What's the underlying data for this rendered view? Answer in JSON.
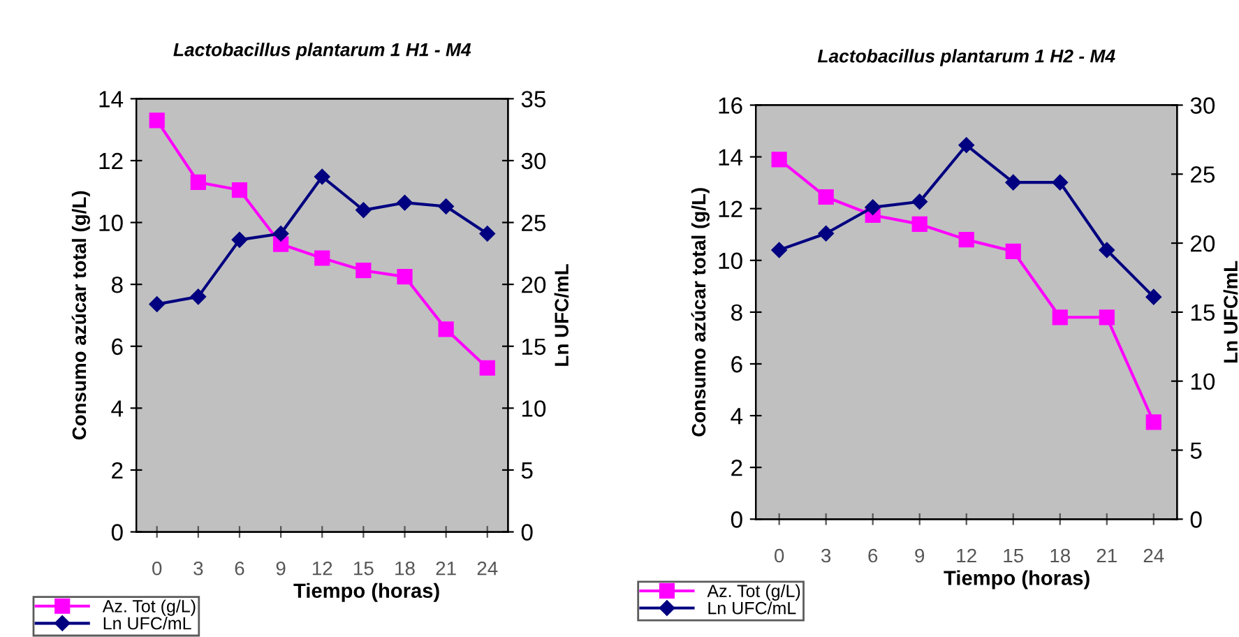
{
  "chart_data": [
    {
      "type": "line",
      "title": "Lactobacillus plantarum 1 H1 - M4",
      "xlabel": "Tiempo (horas)",
      "ylabel": "Consumo azúcar total (g/L)",
      "y2label": "Ln UFC/mL",
      "categories": [
        "0",
        "3",
        "6",
        "9",
        "12",
        "15",
        "18",
        "21",
        "24"
      ],
      "series": [
        {
          "name": "Az. Tot (g/L)",
          "color": "#ff00ff",
          "marker": "square",
          "values": [
            13.3,
            11.3,
            11.05,
            9.3,
            8.85,
            8.45,
            8.25,
            6.55,
            5.3
          ]
        },
        {
          "name": "Ln UFC/mL",
          "color": "#000080",
          "marker": "diamond",
          "axis": "y2",
          "values": [
            18.4,
            19.0,
            23.6,
            24.1,
            28.7,
            26.0,
            26.6,
            26.3,
            24.1
          ]
        }
      ],
      "ylim": [
        0,
        14
      ],
      "yticks": [
        0,
        2,
        4,
        6,
        8,
        10,
        12,
        14
      ],
      "y2lim": [
        0,
        35
      ],
      "y2ticks": [
        0,
        5,
        10,
        15,
        20,
        25,
        30,
        35
      ],
      "grid": false,
      "legend": "bottom left"
    },
    {
      "type": "line",
      "title": "Lactobacillus plantarum 1 H2 - M4",
      "xlabel": "Tiempo (horas)",
      "ylabel": "Consumo azúcar total (g/L)",
      "y2label": "Ln UFC/mL",
      "categories": [
        "0",
        "3",
        "6",
        "9",
        "12",
        "15",
        "18",
        "21",
        "24"
      ],
      "series": [
        {
          "name": "Az. Tot (g/L)",
          "color": "#ff00ff",
          "marker": "square",
          "values": [
            13.9,
            12.45,
            11.75,
            11.4,
            10.8,
            10.35,
            7.8,
            7.8,
            3.75
          ]
        },
        {
          "name": "Ln UFC/mL",
          "color": "#000080",
          "marker": "diamond",
          "axis": "y2",
          "values": [
            19.5,
            20.7,
            22.6,
            23.0,
            27.1,
            24.4,
            24.4,
            19.5,
            16.1
          ]
        }
      ],
      "ylim": [
        0,
        16
      ],
      "yticks": [
        0,
        2,
        4,
        6,
        8,
        10,
        12,
        14,
        16
      ],
      "y2lim": [
        0,
        30
      ],
      "y2ticks": [
        0,
        5,
        10,
        15,
        20,
        25,
        30
      ],
      "grid": false,
      "legend": "bottom left"
    }
  ]
}
